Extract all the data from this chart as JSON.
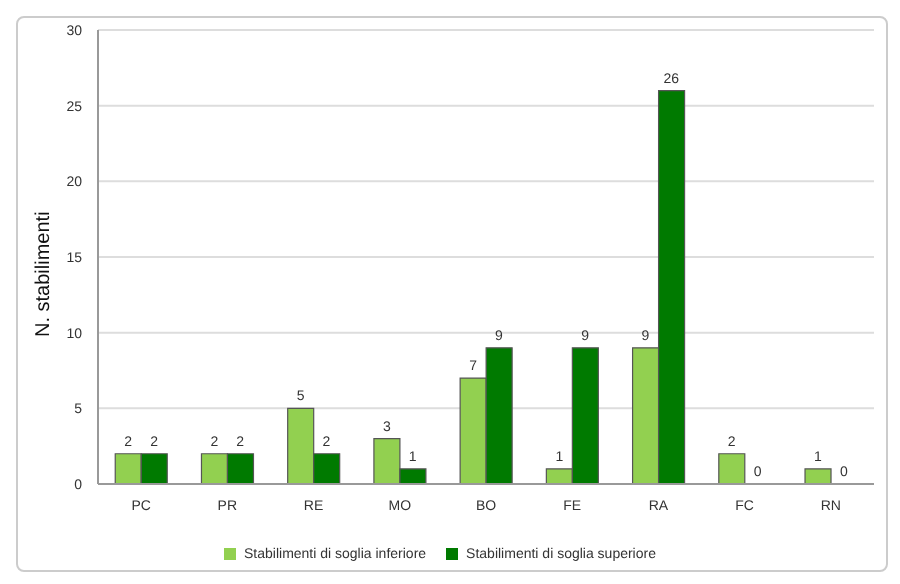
{
  "chart_data": {
    "type": "bar",
    "ylabel": "N. stabilimenti",
    "categories": [
      "PC",
      "PR",
      "RE",
      "MO",
      "BO",
      "FE",
      "RA",
      "FC",
      "RN"
    ],
    "series": [
      {
        "name": "Stabilimenti di soglia inferiore",
        "color": "#92d050",
        "values": [
          2,
          2,
          5,
          3,
          7,
          1,
          9,
          2,
          1
        ]
      },
      {
        "name": "Stabilimenti di soglia superiore",
        "color": "#007a00",
        "values": [
          2,
          2,
          2,
          1,
          9,
          9,
          26,
          0,
          0
        ]
      }
    ],
    "ylim": [
      0,
      30
    ],
    "yticks": [
      0,
      5,
      10,
      15,
      20,
      25,
      30
    ],
    "grid": "y",
    "legend": "bottom",
    "data_labels": true
  }
}
